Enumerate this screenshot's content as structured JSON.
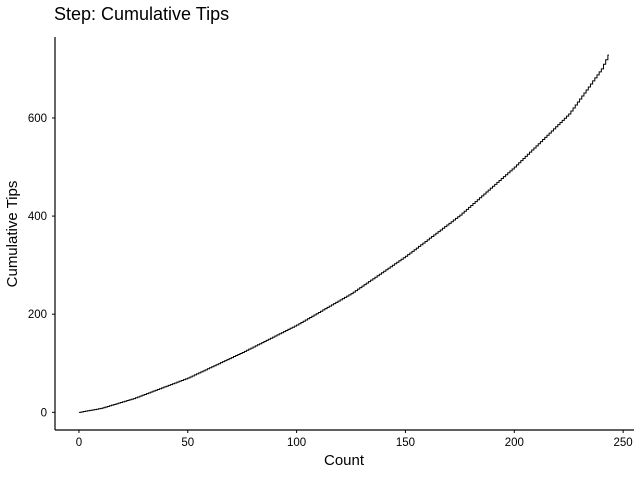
{
  "chart_data": {
    "type": "line",
    "step": true,
    "title": "Step: Cumulative Tips",
    "xlabel": "Count",
    "ylabel": "Cumulative Tips",
    "xlim": [
      -11,
      255
    ],
    "ylim": [
      -36,
      765
    ],
    "xticks": [
      0,
      50,
      100,
      150,
      200,
      250
    ],
    "yticks": [
      0,
      200,
      400,
      600
    ],
    "grid": false,
    "n_points": 244,
    "control_points": [
      [
        0,
        0
      ],
      [
        10,
        8
      ],
      [
        25,
        28
      ],
      [
        50,
        70
      ],
      [
        75,
        122
      ],
      [
        100,
        178
      ],
      [
        125,
        242
      ],
      [
        150,
        318
      ],
      [
        175,
        402
      ],
      [
        200,
        500
      ],
      [
        225,
        608
      ],
      [
        240,
        700
      ],
      [
        243,
        728
      ]
    ],
    "line_color": "#000000"
  }
}
